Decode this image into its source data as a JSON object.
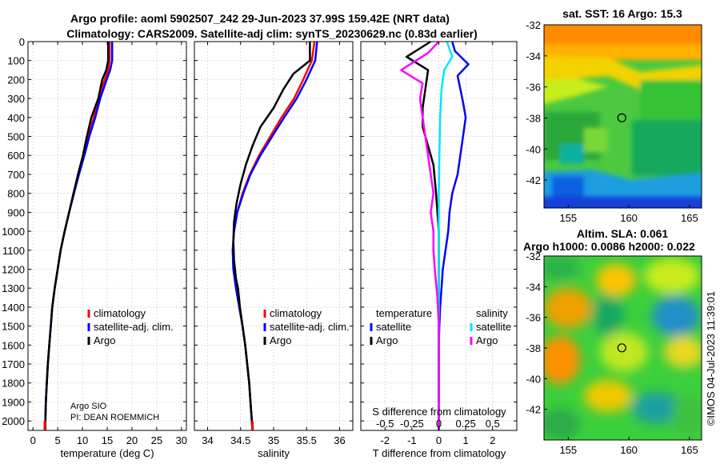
{
  "figure": {
    "title_line1": "Argo profile: aoml 5902507_242 29-Jun-2023 37.99S 159.42E (NRT data)",
    "title_line2": "Climatology: CARS2009. Satellite-adj clim: synTS_20230629.nc (0.83d earlier)",
    "float_owner": "Argo SIO",
    "pi": "PI: DEAN ROEMMICH",
    "watermark": "©IMOS 04-Jul-2023 11:39:01"
  },
  "colors": {
    "climatology": "#ff0000",
    "satellite": "#0000ff",
    "argo": "#000000",
    "sat_sal": "#00e5ff",
    "argo_sal": "#ff00ff"
  },
  "chart_data": [
    {
      "type": "line",
      "name": "temperature-profile",
      "xlabel": "temperature (deg C)",
      "xlim": [
        -1,
        31
      ],
      "ylim": [
        0,
        2050
      ],
      "xticks": [
        0,
        5,
        10,
        15,
        20,
        25,
        30
      ],
      "yticks": [
        0,
        100,
        200,
        300,
        400,
        500,
        600,
        700,
        800,
        900,
        1000,
        1100,
        1200,
        1300,
        1400,
        1500,
        1600,
        1700,
        1800,
        1900,
        2000
      ],
      "legend": [
        "climatology",
        "satellite-adj. clim.",
        "Argo"
      ],
      "series": [
        {
          "name": "climatology",
          "color": "#ff0000",
          "points": [
            [
              15.5,
              0
            ],
            [
              15.5,
              100
            ],
            [
              15.2,
              150
            ],
            [
              14.5,
              200
            ],
            [
              13.3,
              300
            ],
            [
              12.3,
              400
            ],
            [
              11.2,
              500
            ],
            [
              10.3,
              600
            ],
            [
              9.2,
              700
            ],
            [
              8.2,
              800
            ],
            [
              7.3,
              900
            ],
            [
              6.4,
              1000
            ],
            [
              5.6,
              1100
            ],
            [
              5.0,
              1200
            ],
            [
              4.4,
              1300
            ],
            [
              3.9,
              1400
            ],
            [
              3.6,
              1500
            ],
            [
              3.3,
              1600
            ],
            [
              3.0,
              1700
            ],
            [
              2.8,
              1800
            ],
            [
              2.6,
              1900
            ],
            [
              2.5,
              2000
            ],
            [
              2.4,
              2050
            ]
          ]
        },
        {
          "name": "satellite-adj. clim.",
          "color": "#0000ff",
          "points": [
            [
              16.0,
              0
            ],
            [
              16.0,
              100
            ],
            [
              15.6,
              150
            ],
            [
              14.9,
              200
            ],
            [
              13.6,
              300
            ],
            [
              12.6,
              400
            ],
            [
              11.4,
              500
            ],
            [
              10.4,
              600
            ],
            [
              9.3,
              700
            ],
            [
              8.3,
              800
            ],
            [
              7.3,
              900
            ],
            [
              6.4,
              1000
            ],
            [
              5.6,
              1100
            ],
            [
              5.0,
              1200
            ],
            [
              4.4,
              1300
            ],
            [
              3.9,
              1400
            ],
            [
              3.6,
              1500
            ],
            [
              3.3,
              1600
            ],
            [
              3.0,
              1700
            ],
            [
              2.8,
              1800
            ],
            [
              2.6,
              1900
            ],
            [
              2.5,
              2000
            ],
            [
              2.4,
              2050
            ]
          ]
        },
        {
          "name": "Argo",
          "color": "#000000",
          "points": [
            [
              15.2,
              0
            ],
            [
              15.2,
              100
            ],
            [
              14.8,
              150
            ],
            [
              14.0,
              200
            ],
            [
              13.2,
              300
            ],
            [
              11.8,
              400
            ],
            [
              10.9,
              500
            ],
            [
              10.1,
              600
            ],
            [
              9.1,
              700
            ],
            [
              8.2,
              800
            ],
            [
              7.3,
              900
            ],
            [
              6.4,
              1000
            ],
            [
              5.6,
              1100
            ],
            [
              5.0,
              1200
            ],
            [
              4.4,
              1300
            ],
            [
              3.9,
              1400
            ],
            [
              3.6,
              1500
            ],
            [
              3.3,
              1600
            ],
            [
              3.0,
              1700
            ],
            [
              2.8,
              1800
            ],
            [
              2.6,
              1900
            ],
            [
              2.5,
              2000
            ],
            [
              2.5,
              2050
            ]
          ]
        }
      ]
    },
    {
      "type": "line",
      "name": "salinity-profile",
      "xlabel": "salinity",
      "xlim": [
        33.8,
        36.2
      ],
      "ylim": [
        0,
        2050
      ],
      "xticks": [
        34,
        34.5,
        35,
        35.5,
        36
      ],
      "legend": [
        "climatology",
        "satellite-adj. clim.",
        "Argo"
      ],
      "series": [
        {
          "name": "climatology",
          "color": "#ff0000",
          "points": [
            [
              35.62,
              0
            ],
            [
              35.58,
              100
            ],
            [
              35.45,
              200
            ],
            [
              35.31,
              300
            ],
            [
              35.12,
              400
            ],
            [
              34.95,
              500
            ],
            [
              34.78,
              600
            ],
            [
              34.64,
              700
            ],
            [
              34.53,
              800
            ],
            [
              34.45,
              900
            ],
            [
              34.4,
              1000
            ],
            [
              34.38,
              1100
            ],
            [
              34.39,
              1200
            ],
            [
              34.43,
              1300
            ],
            [
              34.48,
              1400
            ],
            [
              34.53,
              1500
            ],
            [
              34.57,
              1600
            ],
            [
              34.6,
              1700
            ],
            [
              34.63,
              1800
            ],
            [
              34.65,
              1900
            ],
            [
              34.67,
              2000
            ],
            [
              34.68,
              2050
            ]
          ]
        },
        {
          "name": "satellite-adj. clim.",
          "color": "#0000ff",
          "points": [
            [
              35.66,
              0
            ],
            [
              35.63,
              100
            ],
            [
              35.5,
              200
            ],
            [
              35.35,
              300
            ],
            [
              35.16,
              400
            ],
            [
              34.98,
              500
            ],
            [
              34.8,
              600
            ],
            [
              34.65,
              700
            ],
            [
              34.54,
              800
            ],
            [
              34.45,
              900
            ],
            [
              34.4,
              1000
            ],
            [
              34.38,
              1100
            ],
            [
              34.39,
              1200
            ],
            [
              34.43,
              1300
            ],
            [
              34.48,
              1400
            ],
            [
              34.53,
              1500
            ],
            [
              34.57,
              1600
            ],
            [
              34.6,
              1700
            ],
            [
              34.63,
              1800
            ],
            [
              34.65,
              1900
            ],
            [
              34.67,
              2000
            ],
            [
              34.68,
              2050
            ]
          ]
        },
        {
          "name": "Argo",
          "color": "#000000",
          "points": [
            [
              35.55,
              0
            ],
            [
              35.55,
              100
            ],
            [
              35.3,
              170
            ],
            [
              35.15,
              250
            ],
            [
              35.0,
              350
            ],
            [
              34.8,
              450
            ],
            [
              34.68,
              550
            ],
            [
              34.58,
              650
            ],
            [
              34.5,
              750
            ],
            [
              34.44,
              850
            ],
            [
              34.4,
              950
            ],
            [
              34.39,
              1050
            ],
            [
              34.4,
              1150
            ],
            [
              34.43,
              1250
            ],
            [
              34.46,
              1300
            ],
            [
              34.49,
              1400
            ],
            [
              34.53,
              1500
            ],
            [
              34.57,
              1600
            ],
            [
              34.6,
              1700
            ],
            [
              34.63,
              1800
            ],
            [
              34.65,
              1900
            ],
            [
              34.67,
              2000
            ],
            [
              34.68,
              2050
            ]
          ]
        }
      ]
    },
    {
      "type": "line",
      "name": "difference-profile",
      "xlabel": "T difference from climatology",
      "xlabel_top": "S difference from climatology",
      "xlim": [
        -2.9,
        2.9
      ],
      "ylim": [
        0,
        2050
      ],
      "xticks": [
        -2,
        -1,
        0,
        1,
        2
      ],
      "xtick_labels_top": [
        "-0.5",
        "-0.25",
        "0",
        "0.25",
        "0.5"
      ],
      "legend_titles": [
        "temperature",
        "salinity"
      ],
      "legend": [
        "satellite",
        "Argo",
        "satellite",
        "Argo"
      ],
      "series": [
        {
          "name": "temperature satellite",
          "color": "#0000ff",
          "points": [
            [
              0.5,
              0
            ],
            [
              0.6,
              50
            ],
            [
              1.1,
              120
            ],
            [
              0.7,
              180
            ],
            [
              0.8,
              250
            ],
            [
              0.9,
              320
            ],
            [
              1.0,
              400
            ],
            [
              0.9,
              500
            ],
            [
              0.8,
              600
            ],
            [
              0.7,
              700
            ],
            [
              0.5,
              800
            ],
            [
              0.4,
              900
            ],
            [
              0.35,
              1000
            ],
            [
              0.25,
              1100
            ],
            [
              0.15,
              1200
            ],
            [
              0.1,
              1300
            ],
            [
              0.05,
              1400
            ],
            [
              0.02,
              1500
            ],
            [
              0.0,
              1600
            ],
            [
              0.0,
              2050
            ]
          ]
        },
        {
          "name": "temperature Argo",
          "color": "#000000",
          "points": [
            [
              -0.3,
              0
            ],
            [
              -1.2,
              80
            ],
            [
              -0.4,
              150
            ],
            [
              -0.5,
              250
            ],
            [
              -0.6,
              350
            ],
            [
              -0.6,
              450
            ],
            [
              -0.4,
              550
            ],
            [
              -0.2,
              650
            ],
            [
              -0.1,
              800
            ],
            [
              0.0,
              1000
            ],
            [
              0.0,
              2050
            ]
          ]
        },
        {
          "name": "salinity satellite",
          "color": "#00e5ff",
          "points": [
            [
              0.3,
              0
            ],
            [
              0.5,
              80
            ],
            [
              0.2,
              150
            ],
            [
              0.1,
              250
            ],
            [
              0.05,
              400
            ],
            [
              0.02,
              600
            ],
            [
              0.0,
              800
            ],
            [
              0.0,
              2050
            ]
          ]
        },
        {
          "name": "salinity Argo",
          "color": "#ff00ff",
          "points": [
            [
              0.0,
              0
            ],
            [
              -0.4,
              60
            ],
            [
              -1.4,
              150
            ],
            [
              -0.6,
              220
            ],
            [
              -0.7,
              300
            ],
            [
              -0.6,
              400
            ],
            [
              -0.5,
              500
            ],
            [
              -0.4,
              600
            ],
            [
              -0.3,
              700
            ],
            [
              -0.2,
              800
            ],
            [
              -0.3,
              900
            ],
            [
              -0.2,
              1000
            ],
            [
              -0.2,
              1100
            ],
            [
              -0.15,
              1200
            ],
            [
              -0.05,
              1350
            ],
            [
              0.0,
              1500
            ],
            [
              0.0,
              2050
            ]
          ]
        }
      ]
    },
    {
      "type": "heatmap",
      "name": "sst-map",
      "title": "sat. SST: 16 Argo: 15.3",
      "xlim": [
        153,
        166
      ],
      "ylim": [
        -43.8,
        -32
      ],
      "xticks": [
        155,
        160,
        165
      ],
      "yticks": [
        -32,
        -34,
        -36,
        -38,
        -40,
        -42
      ],
      "marker": [
        159.42,
        -37.99
      ]
    },
    {
      "type": "heatmap",
      "name": "sla-map",
      "title_line1": "Altim. SLA: 0.061",
      "title_line2": "Argo h1000: 0.0086 h2000: 0.022",
      "xlim": [
        153,
        166
      ],
      "ylim": [
        -44,
        -32
      ],
      "xticks": [
        155,
        160,
        165
      ],
      "yticks": [
        -32,
        -34,
        -36,
        -38,
        -40,
        -42
      ],
      "marker": [
        159.42,
        -37.99
      ]
    }
  ]
}
